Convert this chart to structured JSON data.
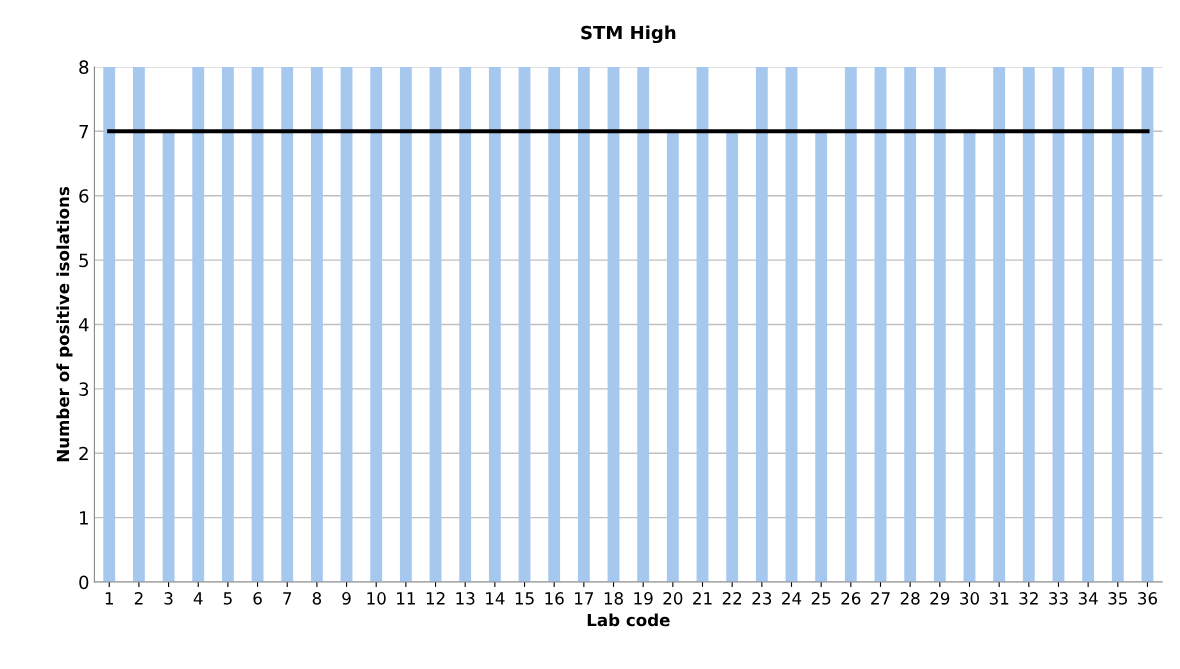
{
  "chart_data": {
    "type": "bar",
    "title": "STM High",
    "xlabel": "Lab code",
    "ylabel": "Number of positive isolations",
    "categories": [
      "1",
      "2",
      "3",
      "4",
      "5",
      "6",
      "7",
      "8",
      "9",
      "10",
      "11",
      "12",
      "13",
      "14",
      "15",
      "16",
      "17",
      "18",
      "19",
      "20",
      "21",
      "22",
      "23",
      "24",
      "25",
      "26",
      "27",
      "28",
      "29",
      "30",
      "31",
      "32",
      "33",
      "34",
      "35",
      "36"
    ],
    "series": [
      {
        "color": "#a6c8ee",
        "values": [
          8,
          8,
          7,
          8,
          8,
          8,
          8,
          8,
          8,
          8,
          8,
          8,
          8,
          8,
          8,
          8,
          8,
          8,
          8,
          7,
          8,
          7,
          8,
          8,
          7,
          8,
          8,
          8,
          8,
          7,
          8,
          8,
          8,
          8,
          8,
          8
        ]
      },
      {
        "type": "line",
        "color": "#000000",
        "values": [
          7,
          7,
          7,
          7,
          7,
          7,
          7,
          7,
          7,
          7,
          7,
          7,
          7,
          7,
          7,
          7,
          7,
          7,
          7,
          7,
          7,
          7,
          7,
          7,
          7,
          7,
          7,
          7,
          7,
          7,
          7,
          7,
          7,
          7,
          7,
          7
        ]
      }
    ],
    "ylim": [
      0,
      8
    ],
    "yticks": [
      0,
      1,
      2,
      3,
      4,
      5,
      6,
      7,
      8
    ],
    "grid": "y",
    "marker": "none",
    "line_style": "solid"
  }
}
